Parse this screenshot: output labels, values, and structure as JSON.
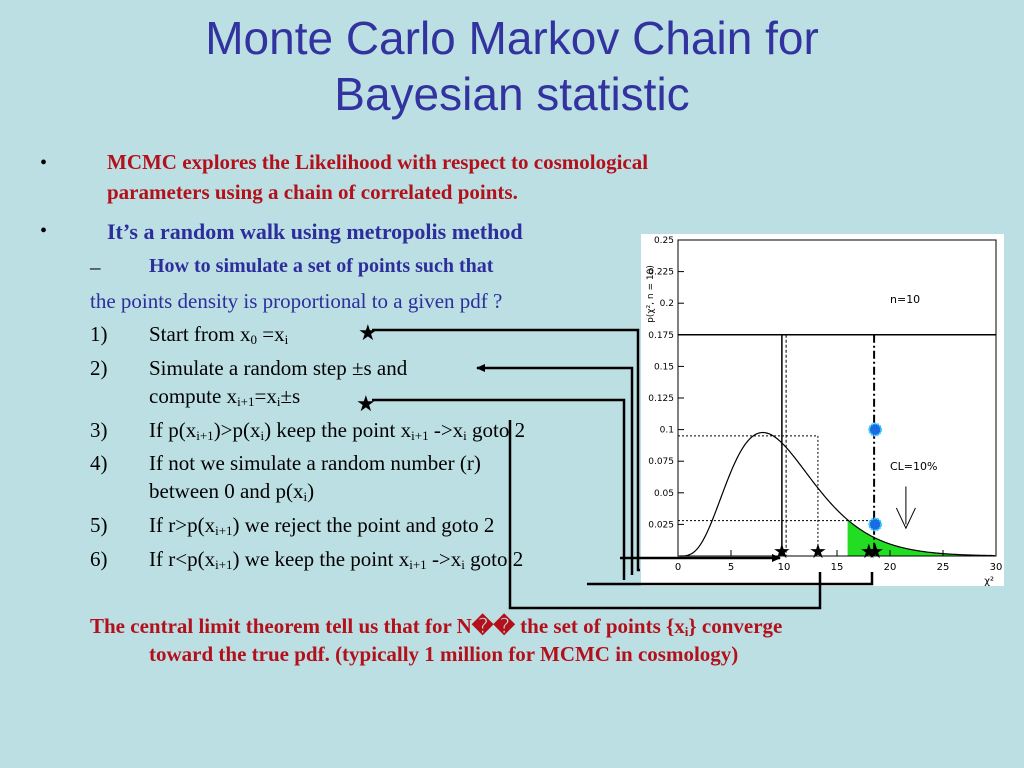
{
  "slide": {
    "title_line1": "Monte Carlo Markov Chain  for",
    "title_line2": "Bayesian statistic",
    "bullets": {
      "b1_marker": "•",
      "b1_line1": "MCMC explores the Likelihood with respect to cosmological",
      "b1_line2": "parameters using a chain of correlated points.",
      "b2_marker": "•",
      "b2_line1": "It’s a random walk using metropolis method"
    },
    "sub": {
      "dash": "–",
      "text": "How to simulate a set of points such that",
      "cont": "the points density is proportional to a given pdf ?"
    },
    "steps": [
      {
        "num": "1)",
        "pre": "Start from x",
        "s1": "0",
        "mid": " =x",
        "s2": "i"
      },
      {
        "num": "2)",
        "line1": "Simulate a random step ±s and",
        "pre": "compute x",
        "s1": "i+1",
        "mid": "=x",
        "s2": "i",
        "post": "±s"
      },
      {
        "num": "3)",
        "a": "If p(x",
        "s1": "i+1",
        "b": ")>p(x",
        "s2": "i",
        "c": ") keep the point x",
        "s3": "i+1",
        "d": " ->x",
        "s4": "i",
        "e": " goto 2"
      },
      {
        "num": "4)",
        "line1": "If not we simulate a random number (r)",
        "pre": "between 0 and p(x",
        "s1": "i",
        "post": ")"
      },
      {
        "num": "5)",
        "a": "If  r>p(x",
        "s1": "i+1",
        "b": ") we reject the point and goto 2"
      },
      {
        "num": "6)",
        "a": "If  r<p(x",
        "s1": "i+1",
        "b": ") we  keep the point x",
        "s2": "i+1",
        "c": " ->x",
        "s3": "i",
        "d": " goto 2"
      }
    ],
    "conclusion": {
      "a": "The central limit theorem tell us that for N",
      "glyph": "��",
      "b": " the set of points {x",
      "s1": "i",
      "c": "} converge",
      "line2": "toward the true pdf. (typically 1 million for MCMC in cosmology)"
    }
  },
  "chart_data": {
    "type": "line",
    "title": "",
    "ylabel": "p(χ², n = 10)",
    "xlabel": "χ²",
    "annotation_n": "n=10",
    "annotation_cl": "CL=10%",
    "xlim": [
      0,
      30
    ],
    "ylim": [
      0,
      0.25
    ],
    "xticks": [
      "0",
      "5",
      "10",
      "15",
      "20",
      "25",
      "30"
    ],
    "yticks": [
      "0.025",
      "0.05",
      "0.075",
      "0.1",
      "0.125",
      "0.15",
      "0.175",
      "0.2",
      "0.225",
      "0.25"
    ],
    "series": [
      {
        "dof": 10,
        "description_values": "chi-square pdf, 10 degrees of freedom"
      }
    ],
    "shaded_from_x": 16,
    "colors": {
      "curve": "#000000",
      "shade": "#22dd22",
      "frame": "#000000"
    }
  }
}
